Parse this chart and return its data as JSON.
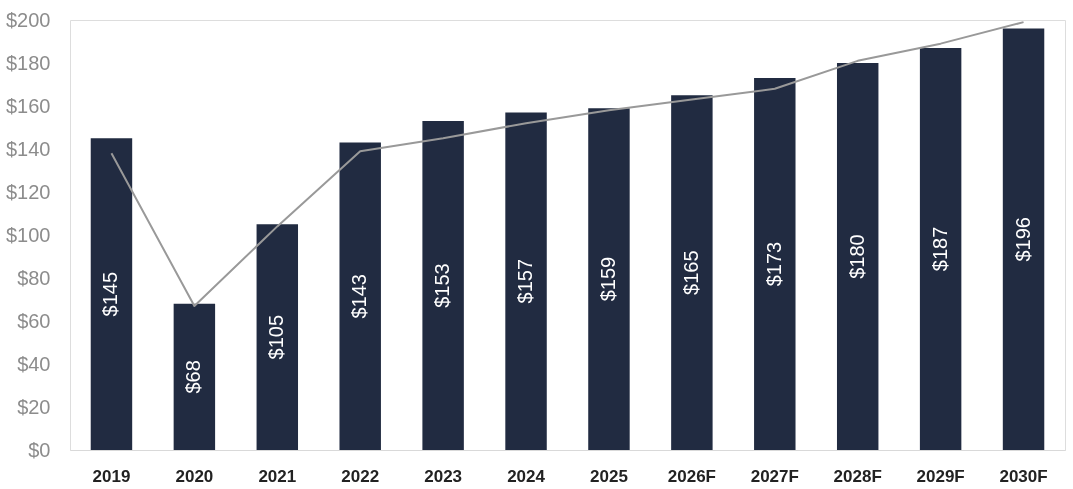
{
  "chart_data": {
    "type": "bar",
    "categories": [
      "2019",
      "2020",
      "2021",
      "2022",
      "2023",
      "2024",
      "2025",
      "2026F",
      "2027F",
      "2028F",
      "2029F",
      "2030F"
    ],
    "series": [
      {
        "color": "#212b41",
        "values": [
          145,
          68,
          105,
          143,
          153,
          157,
          159,
          165,
          173,
          180,
          187,
          196
        ],
        "value_labels": [
          "$145",
          "$68",
          "$105",
          "$143",
          "$153",
          "$157",
          "$159",
          "$165",
          "$173",
          "$180",
          "$187",
          "$196"
        ]
      },
      {
        "type": "line",
        "color": "#999999",
        "values": [
          138,
          67,
          104,
          139,
          145,
          152,
          158,
          163,
          168,
          181,
          189,
          199
        ]
      }
    ],
    "ylim": [
      0,
      200
    ],
    "yticks": [
      {
        "value": 0,
        "label": "$0"
      },
      {
        "value": 20,
        "label": "$20"
      },
      {
        "value": 40,
        "label": "$40"
      },
      {
        "value": 60,
        "label": "$60"
      },
      {
        "value": 80,
        "label": "$80"
      },
      {
        "value": 100,
        "label": "$100"
      },
      {
        "value": 120,
        "label": "$120"
      },
      {
        "value": 140,
        "label": "$140"
      },
      {
        "value": 160,
        "label": "$160"
      },
      {
        "value": 180,
        "label": "$180"
      },
      {
        "value": 200,
        "label": "$200"
      }
    ],
    "grid": false
  }
}
